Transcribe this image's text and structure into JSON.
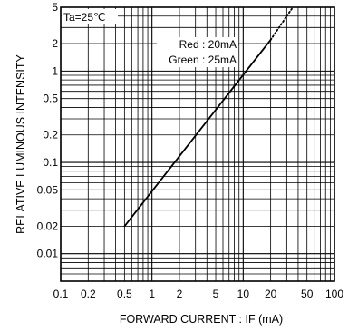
{
  "chart_data": {
    "type": "line",
    "xlabel": "FORWARD CURRENT : IF (mA)",
    "ylabel": "RELATIVE LUMINOUS INTENSITY",
    "x_scale": "log",
    "y_scale": "log",
    "xlim": [
      0.1,
      100
    ],
    "ylim": [
      0.005,
      5
    ],
    "grid": true,
    "x_ticks": [
      "0.1",
      "0.2",
      "0.5",
      "1",
      "2",
      "5",
      "10",
      "20",
      "50",
      "100"
    ],
    "y_ticks": [
      "5",
      "2",
      "1",
      "0.5",
      "0.2",
      "0.1",
      "0.05",
      "0.02",
      "0.01"
    ],
    "annotations": {
      "condition": "Ta=25℃",
      "rating_red": "Red : 20mA",
      "rating_green": "Green : 25mA"
    },
    "series": [
      {
        "style": "solid",
        "x": [
          0.5,
          20
        ],
        "y": [
          0.02,
          2.2
        ]
      },
      {
        "style": "dotted",
        "x": [
          20,
          35
        ],
        "y": [
          2.2,
          5
        ]
      }
    ]
  }
}
